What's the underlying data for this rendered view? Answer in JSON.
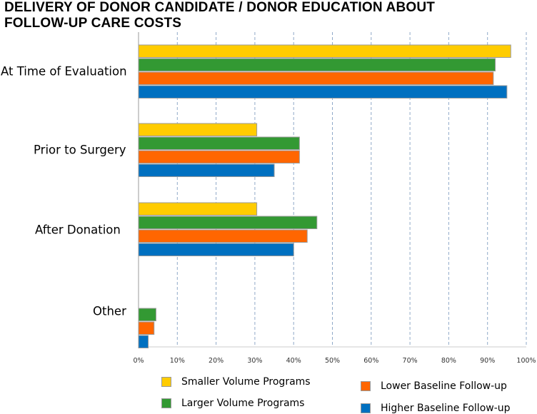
{
  "colors": {
    "smaller": "#FFCC00",
    "larger": "#339933",
    "lower": "#FF6600",
    "higher": "#0070C0",
    "grid": "#8FA9C8",
    "axis": "#999999"
  },
  "chart_data": {
    "type": "bar",
    "orientation": "horizontal",
    "title_lines": [
      "DELIVERY OF DONOR CANDIDATE / DONOR EDUCATION ABOUT",
      "FOLLOW-UP CARE COSTS"
    ],
    "categories": [
      "At Time of Evaluation",
      "Prior to Surgery",
      "After Donation",
      "Other"
    ],
    "series": [
      {
        "name": "Smaller Volume Programs",
        "color_key": "smaller",
        "values": [
          96,
          30.5,
          30.5,
          0
        ]
      },
      {
        "name": "Larger Volume Programs",
        "color_key": "larger",
        "values": [
          92,
          41.5,
          46,
          4.5
        ]
      },
      {
        "name": "Lower Baseline Follow-up",
        "color_key": "lower",
        "values": [
          91.5,
          41.5,
          43.5,
          4
        ]
      },
      {
        "name": "Higher Baseline Follow-up",
        "color_key": "higher",
        "values": [
          95,
          35,
          40,
          2.5
        ]
      }
    ],
    "xlim": [
      0,
      100
    ],
    "x_ticks": [
      "0%",
      "10%",
      "20%",
      "30%",
      "40%",
      "50%",
      "60%",
      "70%",
      "80%",
      "90%",
      "100%"
    ],
    "grid": true,
    "legend": [
      "Smaller Volume Programs",
      "Larger Volume Programs",
      "Lower Baseline Follow-up",
      "Higher Baseline Follow-up"
    ],
    "legend_position": "bottom"
  }
}
